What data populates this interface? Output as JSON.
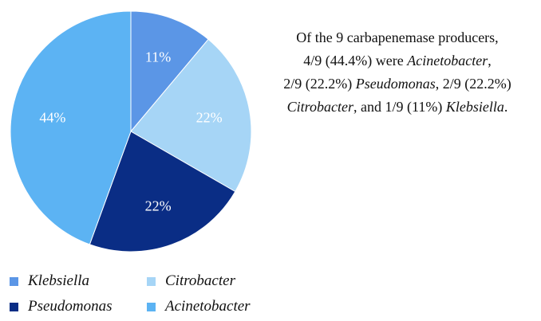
{
  "chart_data": {
    "type": "pie",
    "categories": [
      "Klebsiella",
      "Citrobacter",
      "Pseudomonas",
      "Acinetobacter"
    ],
    "values": [
      1,
      2,
      2,
      4
    ],
    "labels": [
      "11%",
      "22%",
      "22%",
      "44%"
    ],
    "colors": [
      "#5b96e6",
      "#a6d5f6",
      "#0a2d85",
      "#5cb3f3"
    ],
    "title": "",
    "legend_position": "bottom-left",
    "annotation": [
      [
        {
          "text": "Of the 9 carbapenemase producers,",
          "italic": false
        }
      ],
      [
        {
          "text": "4/9 (44.4%) were ",
          "italic": false
        },
        {
          "text": "Acinetobacter",
          "italic": true
        },
        {
          "text": ",",
          "italic": false
        }
      ],
      [
        {
          "text": "2/9 (22.2%) ",
          "italic": false
        },
        {
          "text": "Pseudomonas",
          "italic": true
        },
        {
          "text": ", 2/9 (22.2%)",
          "italic": false
        }
      ],
      [
        {
          "text": "Citrobacter",
          "italic": true
        },
        {
          "text": ", and 1/9 (11%) ",
          "italic": false
        },
        {
          "text": "Klebsiella",
          "italic": true
        },
        {
          "text": ".",
          "italic": false
        }
      ]
    ]
  }
}
